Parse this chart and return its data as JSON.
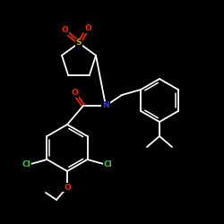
{
  "background_color": "#000000",
  "bond_color": "#ffffff",
  "atom_colors": {
    "O": "#ff2200",
    "S": "#ccaa00",
    "N": "#3333cc",
    "Cl": "#33cc33",
    "C": "#ffffff"
  },
  "figsize": [
    2.5,
    2.5
  ],
  "dpi": 100
}
